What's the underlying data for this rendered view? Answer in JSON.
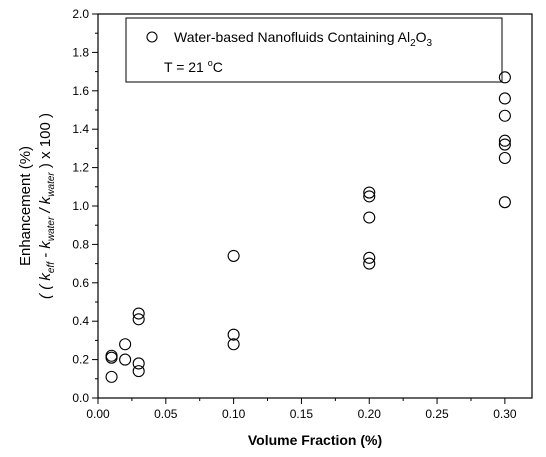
{
  "chart_data": {
    "type": "scatter",
    "title": "",
    "xlabel": "Volume Fraction (%)",
    "ylabel_line1": "Enhancement (%)",
    "ylabel_line2": {
      "p1": "( ( k",
      "s1": "eff",
      "p2": " - k",
      "s2": "water",
      "p3": " / k",
      "s3": "water",
      "p4": " ) x 100 )"
    },
    "xlim": [
      0.0,
      0.32
    ],
    "ylim": [
      0.0,
      2.0
    ],
    "x_ticks": [
      "0.00",
      "0.05",
      "0.10",
      "0.15",
      "0.20",
      "0.25",
      "0.30"
    ],
    "y_ticks": [
      "0.0",
      "0.2",
      "0.4",
      "0.6",
      "0.8",
      "1.0",
      "1.2",
      "1.4",
      "1.6",
      "1.8",
      "2.0"
    ],
    "legend": {
      "series_pre": "Water-based Nanofluids Containing Al",
      "series_sub1": "2",
      "series_mid": "O",
      "series_sub2": "3",
      "condition_pre": "T = 21 ",
      "condition_sup": "o",
      "condition_post": "C",
      "placement": "top-center"
    },
    "marker": "open-circle",
    "series": [
      {
        "x": [
          0.01,
          0.01,
          0.01,
          0.02,
          0.02,
          0.03,
          0.03,
          0.03,
          0.03,
          0.1,
          0.1,
          0.1,
          0.2,
          0.2,
          0.2,
          0.2,
          0.2,
          0.3,
          0.3,
          0.3,
          0.3,
          0.3,
          0.3,
          0.3
        ],
        "y": [
          0.22,
          0.21,
          0.11,
          0.28,
          0.2,
          0.44,
          0.41,
          0.18,
          0.14,
          0.74,
          0.33,
          0.28,
          1.07,
          1.05,
          0.94,
          0.73,
          0.7,
          1.67,
          1.56,
          1.47,
          1.34,
          1.32,
          1.25,
          1.02
        ]
      }
    ]
  }
}
